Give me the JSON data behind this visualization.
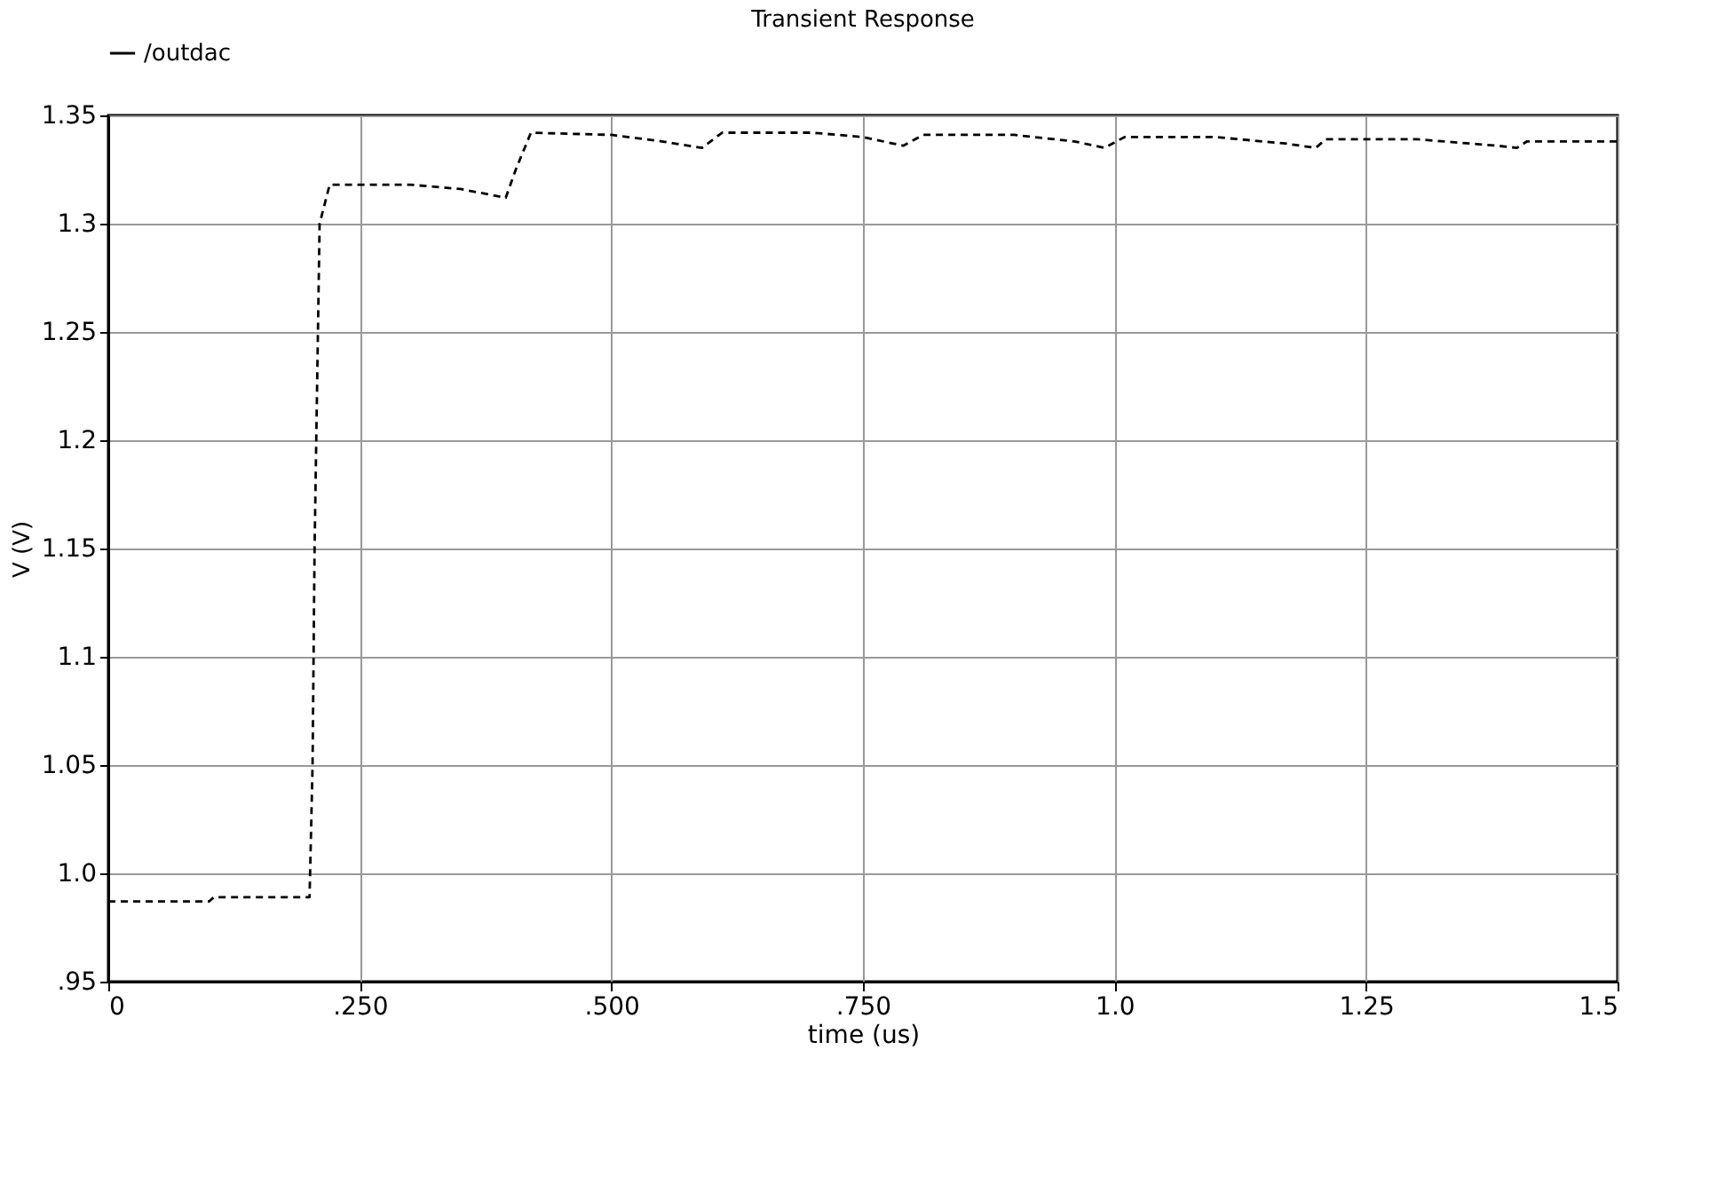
{
  "chart_data": {
    "type": "line",
    "title": "Transient Response",
    "xlabel": "time (us)",
    "ylabel": "V (V)",
    "x": [
      0,
      0.1,
      0.105,
      0.2,
      0.203,
      0.205,
      0.21,
      0.22,
      0.3,
      0.35,
      0.395,
      0.405,
      0.42,
      0.5,
      0.55,
      0.59,
      0.61,
      0.7,
      0.75,
      0.79,
      0.81,
      0.9,
      0.96,
      0.99,
      1.01,
      1.1,
      1.17,
      1.2,
      1.21,
      1.3,
      1.38,
      1.4,
      1.41,
      1.5
    ],
    "series": [
      {
        "name": "/outdac",
        "color": "#000000",
        "values": [
          0.987,
          0.987,
          0.989,
          0.989,
          1.05,
          1.15,
          1.3,
          1.318,
          1.318,
          1.316,
          1.312,
          1.325,
          1.342,
          1.341,
          1.338,
          1.335,
          1.342,
          1.342,
          1.34,
          1.336,
          1.341,
          1.341,
          1.338,
          1.335,
          1.34,
          1.34,
          1.337,
          1.335,
          1.339,
          1.339,
          1.336,
          1.335,
          1.338,
          1.338
        ]
      }
    ],
    "xlim": [
      0,
      1.5
    ],
    "ylim": [
      0.95,
      1.35
    ],
    "xticks": [
      0,
      {
        "value": 0.25,
        "label": ".250"
      },
      {
        "value": 0.5,
        "label": ".500"
      },
      {
        "value": 0.75,
        "label": ".750"
      },
      {
        "value": 1.0,
        "label": "1.0"
      },
      1.25,
      1.5
    ],
    "yticks": [
      {
        "value": 0.95,
        "label": ".95"
      },
      {
        "value": 1.0,
        "label": "1.0"
      },
      1.05,
      1.1,
      1.15,
      1.2,
      1.25,
      1.3,
      1.35
    ],
    "grid": true,
    "legend": "top left",
    "line_style": "dashed"
  }
}
